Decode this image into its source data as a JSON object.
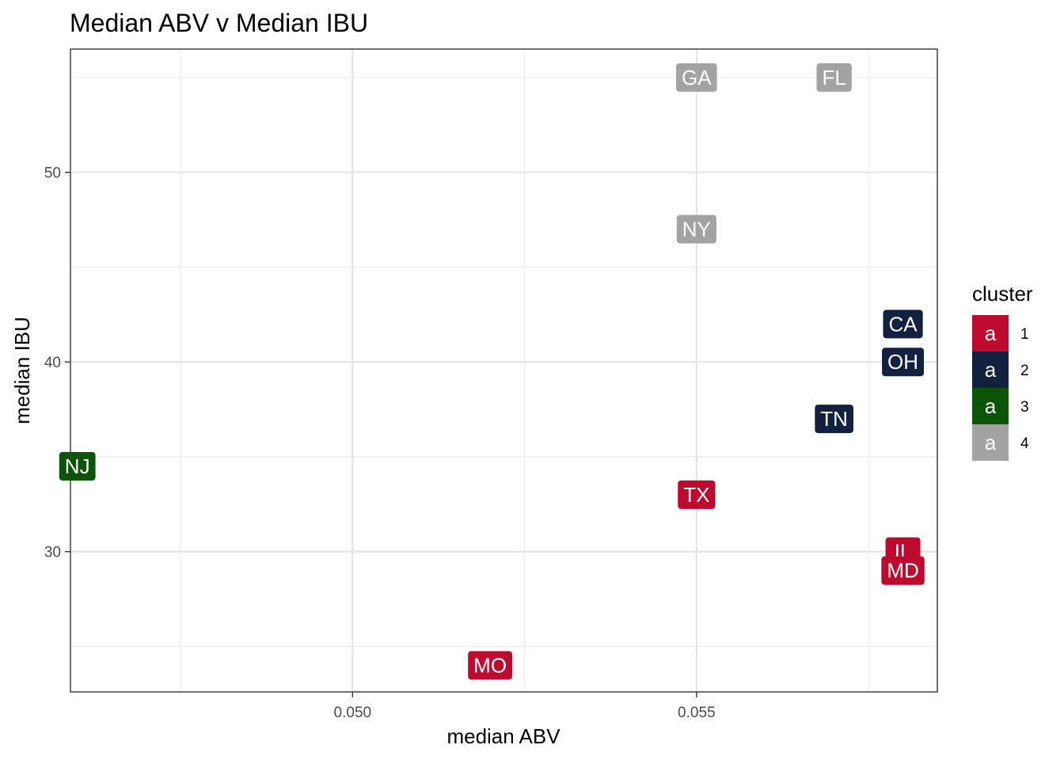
{
  "chart_data": {
    "type": "scatter",
    "title": "Median ABV v Median IBU",
    "xlabel": "median ABV",
    "ylabel": "median IBU",
    "xlim": [
      0.0459,
      0.0585
    ],
    "ylim": [
      22.6,
      56.5
    ],
    "x_ticks": [
      0.05,
      0.055
    ],
    "x_tick_labels": [
      "0.050",
      "0.055"
    ],
    "y_ticks": [
      30,
      40,
      50
    ],
    "y_tick_labels": [
      "30",
      "40",
      "50"
    ],
    "grid": true,
    "legend_position": "right",
    "legend_title": "cluster",
    "clusters": [
      {
        "name": "1",
        "color": "#BF0A30"
      },
      {
        "name": "2",
        "color": "#13213F"
      },
      {
        "name": "3",
        "color": "#0B5408"
      },
      {
        "name": "4",
        "color": "#A3A3A3"
      }
    ],
    "legend_key_text": "a",
    "points": [
      {
        "label": "GA",
        "x": 0.055,
        "y": 55,
        "cluster": "4"
      },
      {
        "label": "FL",
        "x": 0.057,
        "y": 55,
        "cluster": "4"
      },
      {
        "label": "NY",
        "x": 0.055,
        "y": 47,
        "cluster": "4"
      },
      {
        "label": "CA",
        "x": 0.058,
        "y": 42,
        "cluster": "2"
      },
      {
        "label": "OH",
        "x": 0.058,
        "y": 40,
        "cluster": "2"
      },
      {
        "label": "TN",
        "x": 0.057,
        "y": 37,
        "cluster": "2"
      },
      {
        "label": "NJ",
        "x": 0.046,
        "y": 34.5,
        "cluster": "3"
      },
      {
        "label": "TX",
        "x": 0.055,
        "y": 33,
        "cluster": "1"
      },
      {
        "label": "IL",
        "x": 0.058,
        "y": 30,
        "cluster": "1"
      },
      {
        "label": "MD",
        "x": 0.058,
        "y": 29,
        "cluster": "1"
      },
      {
        "label": "MO",
        "x": 0.052,
        "y": 24,
        "cluster": "1"
      }
    ]
  }
}
